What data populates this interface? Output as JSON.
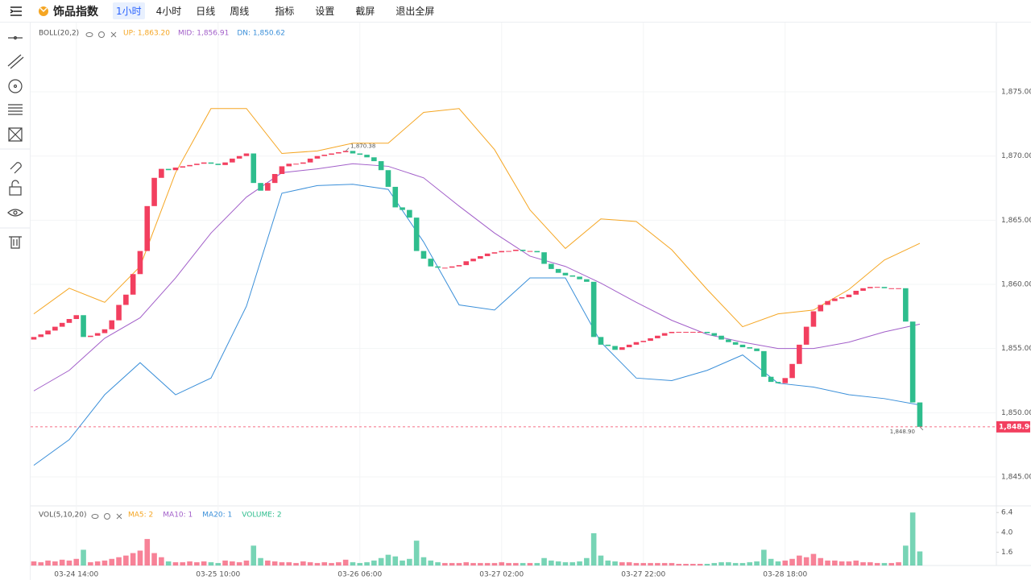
{
  "header": {
    "logo_text": "饰品指数",
    "intervals": [
      "1小时",
      "4小时",
      "日线",
      "周线"
    ],
    "active_interval": 0,
    "buttons": [
      "指标",
      "设置",
      "截屏",
      "退出全屏"
    ]
  },
  "chart_data": {
    "type": "candlestick",
    "xlim": [
      -0.45,
      135.8
    ],
    "xticks": [
      {
        "value": 6,
        "label": "03-24 14:00"
      },
      {
        "value": 26,
        "label": "03-25 10:00"
      },
      {
        "value": 46,
        "label": "03-26 06:00"
      },
      {
        "value": 66,
        "label": "03-27 02:00"
      },
      {
        "value": 86,
        "label": "03-27 22:00"
      },
      {
        "value": 106,
        "label": "03-28 18:00"
      }
    ],
    "ylim": [
      1842.74,
      1880.4
    ],
    "yticks": [
      {
        "value": 1845,
        "label": "1,845.00"
      },
      {
        "value": 1850,
        "label": "1,850.00"
      },
      {
        "value": 1855,
        "label": "1,855.00"
      },
      {
        "value": 1860,
        "label": "1,860.00"
      },
      {
        "value": 1865,
        "label": "1,865.00"
      },
      {
        "value": 1870,
        "label": "1,870.00"
      },
      {
        "value": 1875,
        "label": "1,875.00"
      }
    ],
    "grid": true,
    "up_color": "#f23f5f",
    "down_color": "#2ebd8d",
    "open": [
      1855.7,
      1855.9,
      1856.1,
      1856.4,
      1856.7,
      1857.0,
      1857.3,
      1857.6,
      1855.9,
      1856.0,
      1856.2,
      1856.5,
      1857.2,
      1858.4,
      1859.2,
      1860.8,
      1862.6,
      1866.1,
      1868.3,
      1869.0,
      1868.9,
      1869.1,
      1869.2,
      1869.3,
      1869.4,
      1869.5,
      1869.4,
      1869.3,
      1869.5,
      1869.8,
      1870.0,
      1870.2,
      1867.9,
      1867.3,
      1867.9,
      1868.6,
      1869.2,
      1869.4,
      1869.4,
      1869.5,
      1869.8,
      1870.0,
      1870.1,
      1870.2,
      1870.3,
      1870.4,
      1870.2,
      1870.1,
      1869.9,
      1869.6,
      1868.9,
      1867.6,
      1866.0,
      1865.8,
      1865.2,
      1862.6,
      1862.0,
      1861.4,
      1861.3,
      1861.3,
      1861.4,
      1861.5,
      1861.8,
      1862.0,
      1862.2,
      1862.4,
      1862.5,
      1862.6,
      1862.6,
      1862.7,
      1862.6,
      1862.6,
      1862.5,
      1861.6,
      1861.2,
      1860.9,
      1860.7,
      1860.6,
      1860.4,
      1860.2,
      1855.9,
      1855.3,
      1855.2,
      1854.9,
      1855.1,
      1855.3,
      1855.5,
      1855.6,
      1855.8,
      1856.0,
      1856.2,
      1856.3,
      1856.3,
      1856.3,
      1856.3,
      1856.3,
      1856.2,
      1856.0,
      1855.7,
      1855.5,
      1855.3,
      1855.1,
      1855.0,
      1854.8,
      1852.8,
      1852.4,
      1852.3,
      1852.7,
      1853.8,
      1855.3,
      1856.7,
      1857.9,
      1858.4,
      1858.7,
      1858.9,
      1859.0,
      1859.2,
      1859.5,
      1859.7,
      1859.8,
      1859.8,
      1859.7,
      1859.7,
      1859.7,
      1857.1,
      1850.8
    ],
    "close": [
      1855.9,
      1856.1,
      1856.4,
      1856.7,
      1857.0,
      1857.3,
      1857.6,
      1855.9,
      1856.0,
      1856.2,
      1856.5,
      1857.2,
      1858.4,
      1859.2,
      1860.8,
      1862.6,
      1866.1,
      1868.3,
      1869.0,
      1868.9,
      1869.1,
      1869.2,
      1869.3,
      1869.4,
      1869.5,
      1869.4,
      1869.3,
      1869.5,
      1869.8,
      1870.0,
      1870.2,
      1867.9,
      1867.3,
      1867.9,
      1868.6,
      1869.2,
      1869.4,
      1869.4,
      1869.5,
      1869.8,
      1870.0,
      1870.1,
      1870.2,
      1870.3,
      1870.4,
      1870.2,
      1870.1,
      1869.9,
      1869.6,
      1868.9,
      1867.6,
      1866.0,
      1865.8,
      1865.2,
      1862.6,
      1862.0,
      1861.4,
      1861.3,
      1861.3,
      1861.4,
      1861.5,
      1861.8,
      1862.0,
      1862.2,
      1862.4,
      1862.5,
      1862.6,
      1862.6,
      1862.7,
      1862.6,
      1862.6,
      1862.5,
      1861.6,
      1861.2,
      1860.9,
      1860.7,
      1860.6,
      1860.4,
      1860.2,
      1855.9,
      1855.3,
      1855.2,
      1854.9,
      1855.1,
      1855.3,
      1855.5,
      1855.6,
      1855.8,
      1856.0,
      1856.2,
      1856.3,
      1856.3,
      1856.3,
      1856.3,
      1856.3,
      1856.2,
      1856.0,
      1855.7,
      1855.5,
      1855.3,
      1855.1,
      1855.0,
      1854.8,
      1852.8,
      1852.4,
      1852.3,
      1852.7,
      1853.8,
      1855.3,
      1856.7,
      1857.9,
      1858.4,
      1858.7,
      1858.9,
      1859.0,
      1859.2,
      1859.5,
      1859.7,
      1859.8,
      1859.8,
      1859.7,
      1859.7,
      1859.7,
      1857.1,
      1850.8,
      1848.9
    ],
    "annotations": [
      {
        "index": 44,
        "value": 1870.38,
        "label": "1,870.38"
      },
      {
        "index": 125,
        "value": 1848.9,
        "label": "1,848.90"
      }
    ],
    "current_price": {
      "value": 1848.9,
      "label": "1,848.90",
      "color": "#f23f5f"
    },
    "boll": {
      "name": "BOLL(20,2)",
      "x": [
        0,
        5,
        10,
        15,
        20,
        25,
        30,
        35,
        40,
        45,
        50,
        55,
        60,
        65,
        70,
        75,
        80,
        85,
        90,
        95,
        100,
        105,
        110,
        115,
        120,
        125
      ],
      "series": [
        {
          "name": "UP: 1,863.20",
          "color": "#f5a623",
          "values": [
            1857.7,
            1859.7,
            1858.6,
            1861.4,
            1868.7,
            1873.7,
            1873.7,
            1870.2,
            1870.4,
            1871.0,
            1871.0,
            1873.4,
            1873.7,
            1870.5,
            1865.8,
            1862.8,
            1865.1,
            1864.9,
            1862.7,
            1859.6,
            1856.7,
            1857.7,
            1858.0,
            1859.6,
            1861.9,
            1863.2
          ]
        },
        {
          "name": "MID: 1,856.91",
          "color": "#a25fc9",
          "values": [
            1851.7,
            1853.3,
            1855.8,
            1857.4,
            1860.5,
            1864.0,
            1866.8,
            1868.7,
            1869.0,
            1869.4,
            1869.2,
            1868.3,
            1866.1,
            1864.0,
            1862.2,
            1861.4,
            1860.1,
            1858.6,
            1857.2,
            1856.1,
            1855.5,
            1855.0,
            1855.0,
            1855.5,
            1856.3,
            1856.9
          ]
        },
        {
          "name": "DN: 1,850.62",
          "color": "#3a8fd9",
          "values": [
            1845.9,
            1847.9,
            1851.4,
            1853.9,
            1851.4,
            1852.7,
            1858.3,
            1867.1,
            1867.7,
            1867.8,
            1867.4,
            1863.3,
            1858.4,
            1858.0,
            1860.5,
            1860.5,
            1855.5,
            1852.7,
            1852.5,
            1853.3,
            1854.5,
            1852.3,
            1852.0,
            1851.4,
            1851.1,
            1850.6
          ]
        }
      ]
    },
    "volume": {
      "name": "VOL(5,10,20)",
      "legend": [
        {
          "name": "MA5: 2",
          "color": "#f5a623"
        },
        {
          "name": "MA10: 1",
          "color": "#a25fc9"
        },
        {
          "name": "MA20: 1",
          "color": "#3a8fd9"
        },
        {
          "name": "VOLUME: 2",
          "color": "#2ebd8d"
        }
      ],
      "ylim": [
        0,
        7.2
      ],
      "yticks": [
        1.6,
        {
          "value": 4,
          "label": "4.0"
        },
        6.4
      ],
      "values": [
        0.5,
        0.4,
        0.6,
        0.5,
        0.7,
        0.6,
        0.8,
        1.9,
        0.4,
        0.5,
        0.6,
        0.8,
        1.0,
        1.2,
        1.5,
        1.8,
        3.2,
        1.5,
        1.0,
        0.5,
        0.4,
        0.4,
        0.5,
        0.4,
        0.5,
        0.4,
        0.3,
        0.6,
        0.5,
        0.4,
        0.6,
        2.4,
        0.9,
        0.6,
        0.5,
        0.4,
        0.4,
        0.3,
        0.5,
        0.4,
        0.3,
        0.4,
        0.3,
        0.4,
        0.7,
        0.4,
        0.3,
        0.4,
        0.6,
        0.9,
        1.3,
        1.1,
        0.6,
        0.8,
        3.0,
        1.0,
        0.6,
        0.4,
        0.3,
        0.3,
        0.3,
        0.4,
        0.3,
        0.3,
        0.3,
        0.3,
        0.4,
        0.3,
        0.3,
        0.3,
        0.3,
        0.3,
        0.9,
        0.6,
        0.5,
        0.4,
        0.4,
        0.5,
        0.9,
        3.9,
        1.2,
        0.6,
        0.5,
        0.4,
        0.4,
        0.3,
        0.3,
        0.3,
        0.3,
        0.3,
        0.3,
        0.2,
        0.2,
        0.2,
        0.2,
        0.2,
        0.3,
        0.4,
        0.4,
        0.3,
        0.3,
        0.4,
        0.5,
        1.9,
        0.8,
        0.5,
        0.6,
        0.8,
        1.2,
        1.0,
        1.4,
        0.9,
        0.6,
        0.6,
        0.5,
        0.5,
        0.6,
        0.4,
        0.4,
        0.3,
        0.3,
        0.3,
        0.4,
        2.4,
        6.4,
        1.7
      ]
    }
  }
}
